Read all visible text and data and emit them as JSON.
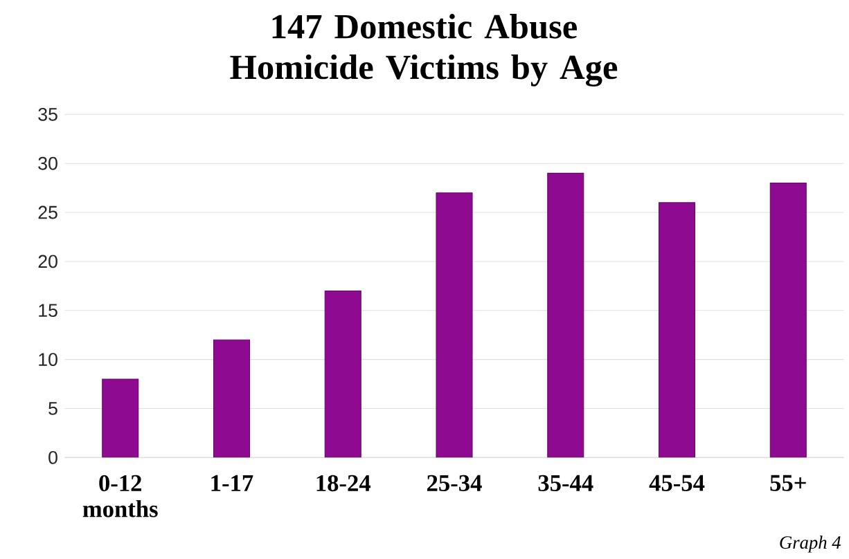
{
  "chart_data": {
    "type": "bar",
    "title": "147 Domestic Abuse Homicide Victims by Age",
    "categories": [
      "0-12 months",
      "1-17",
      "18-24",
      "25-34",
      "35-44",
      "45-54",
      "55+"
    ],
    "values": [
      8,
      12,
      17,
      27,
      29,
      26,
      28
    ],
    "color": "#8e0b91",
    "ylim": [
      0,
      35
    ],
    "yticks": [
      0,
      5,
      10,
      15,
      20,
      25,
      30,
      35
    ],
    "grid": "y",
    "annotations": [
      "Graph 4"
    ]
  }
}
